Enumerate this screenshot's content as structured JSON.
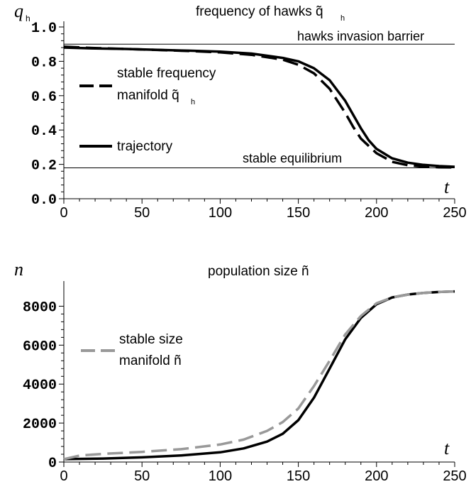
{
  "chart_data": [
    {
      "type": "line",
      "title": "frequency of hawks q̃",
      "title_sub": "h",
      "ylabel": "q",
      "ylabel_sub": "h",
      "xlabel": "t",
      "xlim": [
        0,
        250
      ],
      "ylim": [
        0,
        1
      ],
      "xticks": [
        "0",
        "50",
        "100",
        "150",
        "200",
        "250"
      ],
      "yticks": [
        "0.0",
        "0.2",
        "0.4",
        "0.6",
        "0.8",
        "1.0"
      ],
      "hlines": [
        {
          "y": 0.9,
          "label": "hawks invasion barrier"
        },
        {
          "y": 0.18,
          "label": "stable equilibrium"
        }
      ],
      "series": [
        {
          "name": "trajectory",
          "style": "solid",
          "color": "#000000",
          "x": [
            0,
            20,
            40,
            60,
            80,
            100,
            120,
            140,
            150,
            160,
            170,
            180,
            185,
            190,
            195,
            200,
            210,
            220,
            230,
            240,
            250
          ],
          "y": [
            0.88,
            0.875,
            0.872,
            0.867,
            0.862,
            0.856,
            0.845,
            0.82,
            0.8,
            0.76,
            0.69,
            0.57,
            0.49,
            0.41,
            0.34,
            0.29,
            0.235,
            0.21,
            0.197,
            0.19,
            0.186
          ]
        },
        {
          "name": "stable frequency manifold q̃",
          "name_line1": "stable frequency",
          "name_line2": "manifold q̃",
          "name_sub": "h",
          "style": "dashed",
          "color": "#000000",
          "x": [
            0,
            20,
            40,
            60,
            80,
            100,
            120,
            140,
            150,
            160,
            170,
            175,
            180,
            185,
            190,
            200,
            210,
            220,
            230,
            240,
            250
          ],
          "y": [
            0.885,
            0.877,
            0.872,
            0.866,
            0.86,
            0.852,
            0.838,
            0.81,
            0.78,
            0.73,
            0.64,
            0.57,
            0.5,
            0.42,
            0.35,
            0.265,
            0.215,
            0.195,
            0.187,
            0.183,
            0.182
          ]
        }
      ]
    },
    {
      "type": "line",
      "title": "population size ñ",
      "ylabel": "n",
      "xlabel": "t",
      "xlim": [
        0,
        250
      ],
      "ylim": [
        0,
        9000
      ],
      "xticks": [
        "0",
        "50",
        "100",
        "150",
        "200",
        "250"
      ],
      "yticks": [
        "0",
        "2000",
        "4000",
        "6000",
        "8000"
      ],
      "series": [
        {
          "name": "trajectory",
          "style": "solid",
          "color": "#000000",
          "x": [
            0,
            25,
            50,
            75,
            100,
            115,
            130,
            140,
            150,
            160,
            170,
            180,
            190,
            200,
            210,
            220,
            230,
            240,
            250
          ],
          "y": [
            150,
            180,
            240,
            340,
            500,
            700,
            1050,
            1450,
            2150,
            3300,
            4800,
            6300,
            7400,
            8100,
            8450,
            8600,
            8680,
            8730,
            8760
          ]
        },
        {
          "name": "stable size manifold ñ",
          "name_line1": "stable size",
          "name_line2": "manifold ñ",
          "style": "dashed",
          "color": "#999999",
          "x": [
            0,
            10,
            25,
            50,
            75,
            100,
            115,
            130,
            140,
            150,
            160,
            170,
            180,
            190,
            200,
            210,
            220,
            230,
            240,
            250
          ],
          "y": [
            150,
            330,
            420,
            520,
            660,
            900,
            1150,
            1600,
            2050,
            2750,
            3900,
            5200,
            6550,
            7500,
            8150,
            8450,
            8600,
            8680,
            8730,
            8760
          ]
        }
      ]
    }
  ]
}
